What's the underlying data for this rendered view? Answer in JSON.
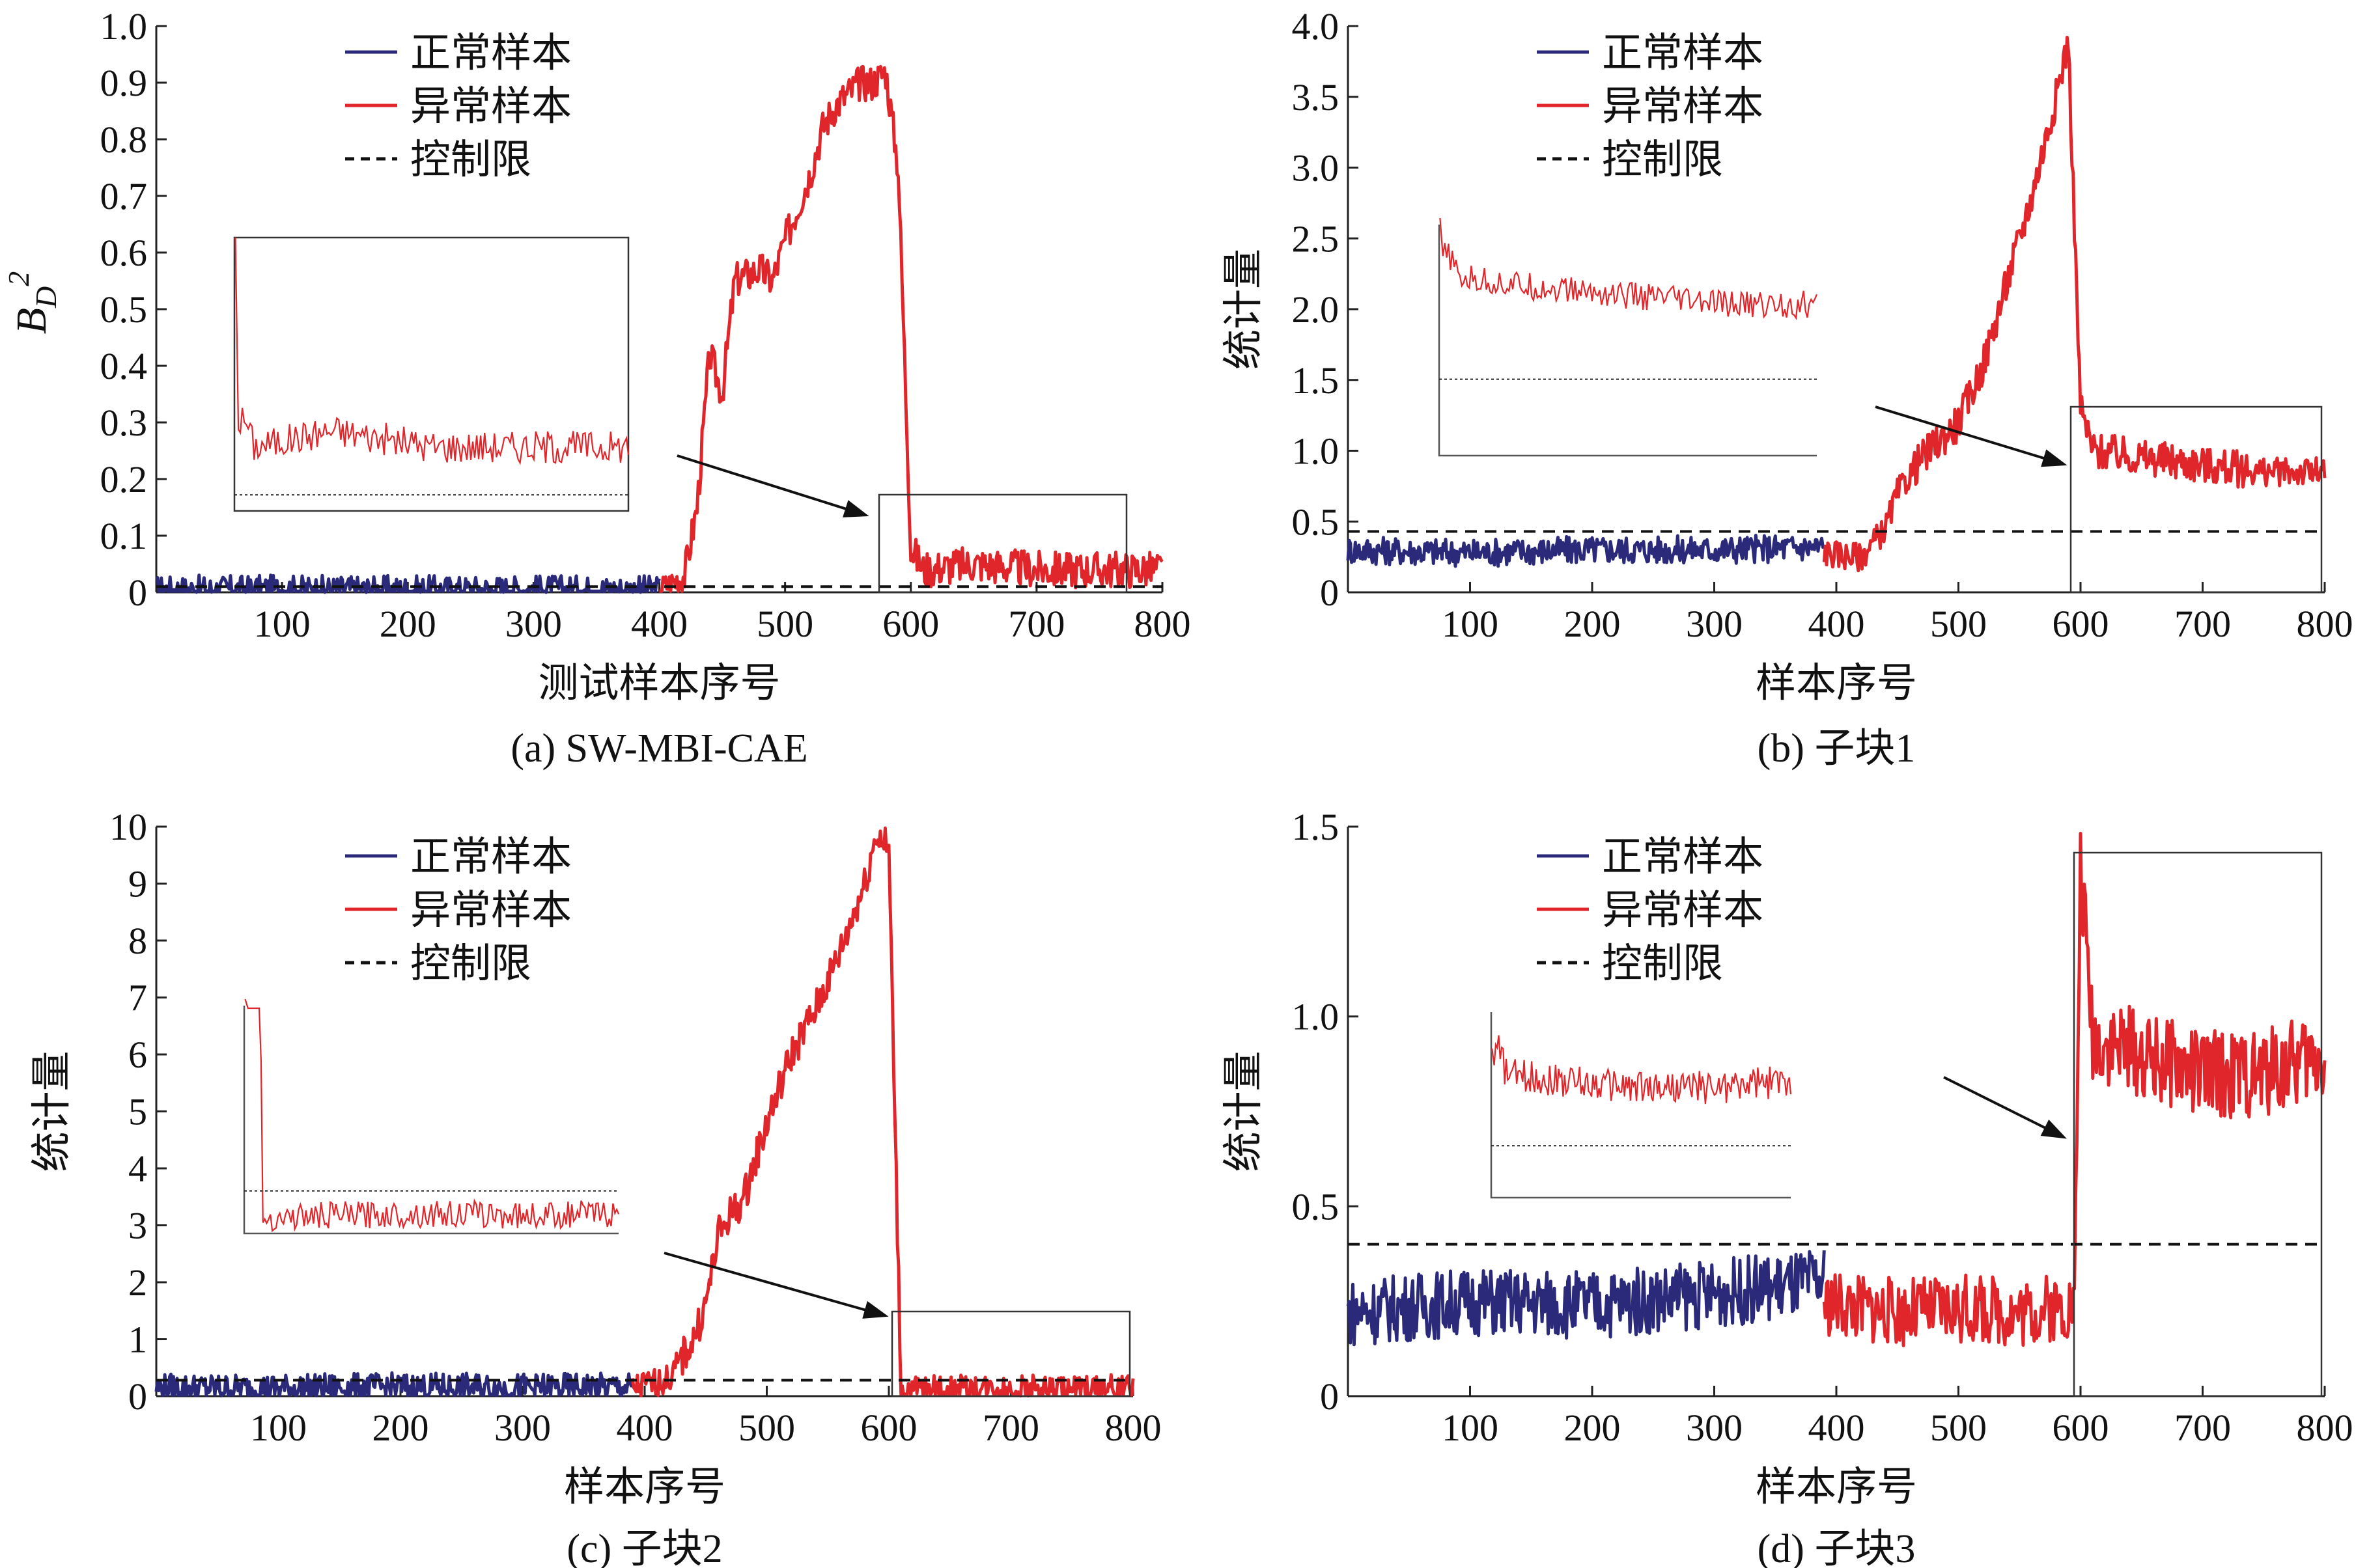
{
  "colors": {
    "normal": "#2b2a7a",
    "abnormal": "#e0262a",
    "limit": "#111111",
    "axis": "#222222"
  },
  "legend": {
    "normal": "正常样本",
    "abnormal": "异常样本",
    "limit": "控制限"
  },
  "chart_data": [
    {
      "id": "a",
      "type": "line",
      "caption": "(a) SW-MBI-CAE",
      "xlabel": "测试样本序号",
      "ylabel_main": "B",
      "ylabel_sub": "D",
      "ylabel_sup": "2",
      "xlim": [
        0,
        800
      ],
      "ylim": [
        0,
        1.0
      ],
      "xticks": [
        100,
        200,
        300,
        400,
        500,
        600,
        700,
        800
      ],
      "yticks": [
        0,
        0.1,
        0.2,
        0.3,
        0.4,
        0.5,
        0.6,
        0.7,
        0.8,
        0.9,
        1.0
      ],
      "ytick_labels": [
        "0",
        "0.1",
        "0.2",
        "0.3",
        "0.4",
        "0.5",
        "0.6",
        "0.7",
        "0.8",
        "0.9",
        "1.0"
      ],
      "control_limit": 0.01,
      "series": [
        {
          "name": "正常样本",
          "x": [
            0,
            100,
            200,
            300,
            400
          ],
          "y": [
            0.005,
            0.006,
            0.005,
            0.006,
            0.005
          ]
        },
        {
          "name": "异常样本",
          "x": [
            400,
            420,
            430,
            440,
            450,
            460,
            470,
            480,
            490,
            500,
            510,
            520,
            530,
            540,
            550,
            560,
            570,
            580,
            590,
            600,
            610,
            650,
            700,
            750,
            800
          ],
          "y": [
            0.005,
            0.03,
            0.15,
            0.42,
            0.35,
            0.55,
            0.56,
            0.57,
            0.55,
            0.62,
            0.68,
            0.74,
            0.82,
            0.86,
            0.88,
            0.9,
            0.9,
            0.92,
            0.75,
            0.08,
            0.04,
            0.05,
            0.04,
            0.04,
            0.04
          ]
        }
      ],
      "inset_source": {
        "x": [
          600,
          800
        ],
        "y": [
          0,
          0.17
        ]
      }
    },
    {
      "id": "b",
      "type": "line",
      "caption": "(b) 子块1",
      "xlabel": "样本序号",
      "ylabel": "统计量",
      "xlim": [
        0,
        800
      ],
      "ylim": [
        0,
        4.0
      ],
      "xticks": [
        100,
        200,
        300,
        400,
        500,
        600,
        700,
        800
      ],
      "yticks": [
        0,
        0.5,
        1.0,
        1.5,
        2.0,
        2.5,
        3.0,
        3.5,
        4.0
      ],
      "ytick_labels": [
        "0",
        "0.5",
        "1.0",
        "1.5",
        "2.0",
        "2.5",
        "3.0",
        "3.5",
        "4.0"
      ],
      "control_limit": 0.43,
      "series": [
        {
          "name": "正常样本",
          "x": [
            0,
            100,
            200,
            300,
            390
          ],
          "y": [
            0.3,
            0.28,
            0.3,
            0.3,
            0.32
          ]
        },
        {
          "name": "异常样本",
          "x": [
            390,
            420,
            440,
            450,
            470,
            500,
            520,
            540,
            560,
            580,
            590,
            600,
            610,
            650,
            700,
            750,
            800
          ],
          "y": [
            0.28,
            0.25,
            0.45,
            0.7,
            0.95,
            1.2,
            1.6,
            2.2,
            2.8,
            3.5,
            3.9,
            1.3,
            1.0,
            0.95,
            0.9,
            0.85,
            0.85
          ]
        }
      ],
      "inset_source": {
        "x": [
          600,
          800
        ],
        "y": [
          0,
          1.3
        ]
      }
    },
    {
      "id": "c",
      "type": "line",
      "caption": "(c) 子块2",
      "xlabel": "样本序号",
      "ylabel": "统计量",
      "xlim": [
        0,
        800
      ],
      "ylim": [
        0,
        10
      ],
      "xticks": [
        100,
        200,
        300,
        400,
        500,
        600,
        700,
        800
      ],
      "yticks": [
        0,
        1,
        2,
        3,
        4,
        5,
        6,
        7,
        8,
        9,
        10
      ],
      "ytick_labels": [
        "0",
        "1",
        "2",
        "3",
        "4",
        "5",
        "6",
        "7",
        "8",
        "9",
        "10"
      ],
      "control_limit": 0.28,
      "series": [
        {
          "name": "正常样本",
          "x": [
            0,
            100,
            200,
            300,
            390
          ],
          "y": [
            0.15,
            0.14,
            0.16,
            0.15,
            0.16
          ]
        },
        {
          "name": "异常样本",
          "x": [
            390,
            420,
            440,
            450,
            460,
            470,
            480,
            500,
            520,
            540,
            560,
            580,
            590,
            600,
            610,
            650,
            700,
            750,
            800
          ],
          "y": [
            0.15,
            0.3,
            1.0,
            1.6,
            2.8,
            3.2,
            3.4,
            4.8,
            6.0,
            6.8,
            7.8,
            9.0,
            9.9,
            9.6,
            0.1,
            0.12,
            0.13,
            0.12,
            0.13
          ]
        }
      ],
      "inset_source": {
        "x": [
          600,
          800
        ],
        "y": [
          0,
          1.5
        ]
      }
    },
    {
      "id": "d",
      "type": "line",
      "caption": "(d) 子块3",
      "xlabel": "样本序号",
      "ylabel": "统计量",
      "xlim": [
        0,
        800
      ],
      "ylim": [
        0,
        1.5
      ],
      "xticks": [
        100,
        200,
        300,
        400,
        500,
        600,
        700,
        800
      ],
      "yticks": [
        0,
        0.5,
        1.0,
        1.5
      ],
      "ytick_labels": [
        "0",
        "0.5",
        "1.0",
        "1.5"
      ],
      "control_limit": 0.4,
      "series": [
        {
          "name": "正常样本",
          "x": [
            0,
            100,
            200,
            300,
            390
          ],
          "y": [
            0.22,
            0.25,
            0.24,
            0.27,
            0.3
          ]
        },
        {
          "name": "异常样本",
          "x": [
            390,
            450,
            500,
            550,
            595,
            600,
            610,
            650,
            700,
            750,
            800
          ],
          "y": [
            0.25,
            0.22,
            0.23,
            0.22,
            0.24,
            1.4,
            0.95,
            0.9,
            0.85,
            0.85,
            0.9
          ]
        }
      ],
      "inset_source": {
        "x": [
          600,
          800
        ],
        "y": [
          0,
          1.43
        ]
      }
    }
  ]
}
